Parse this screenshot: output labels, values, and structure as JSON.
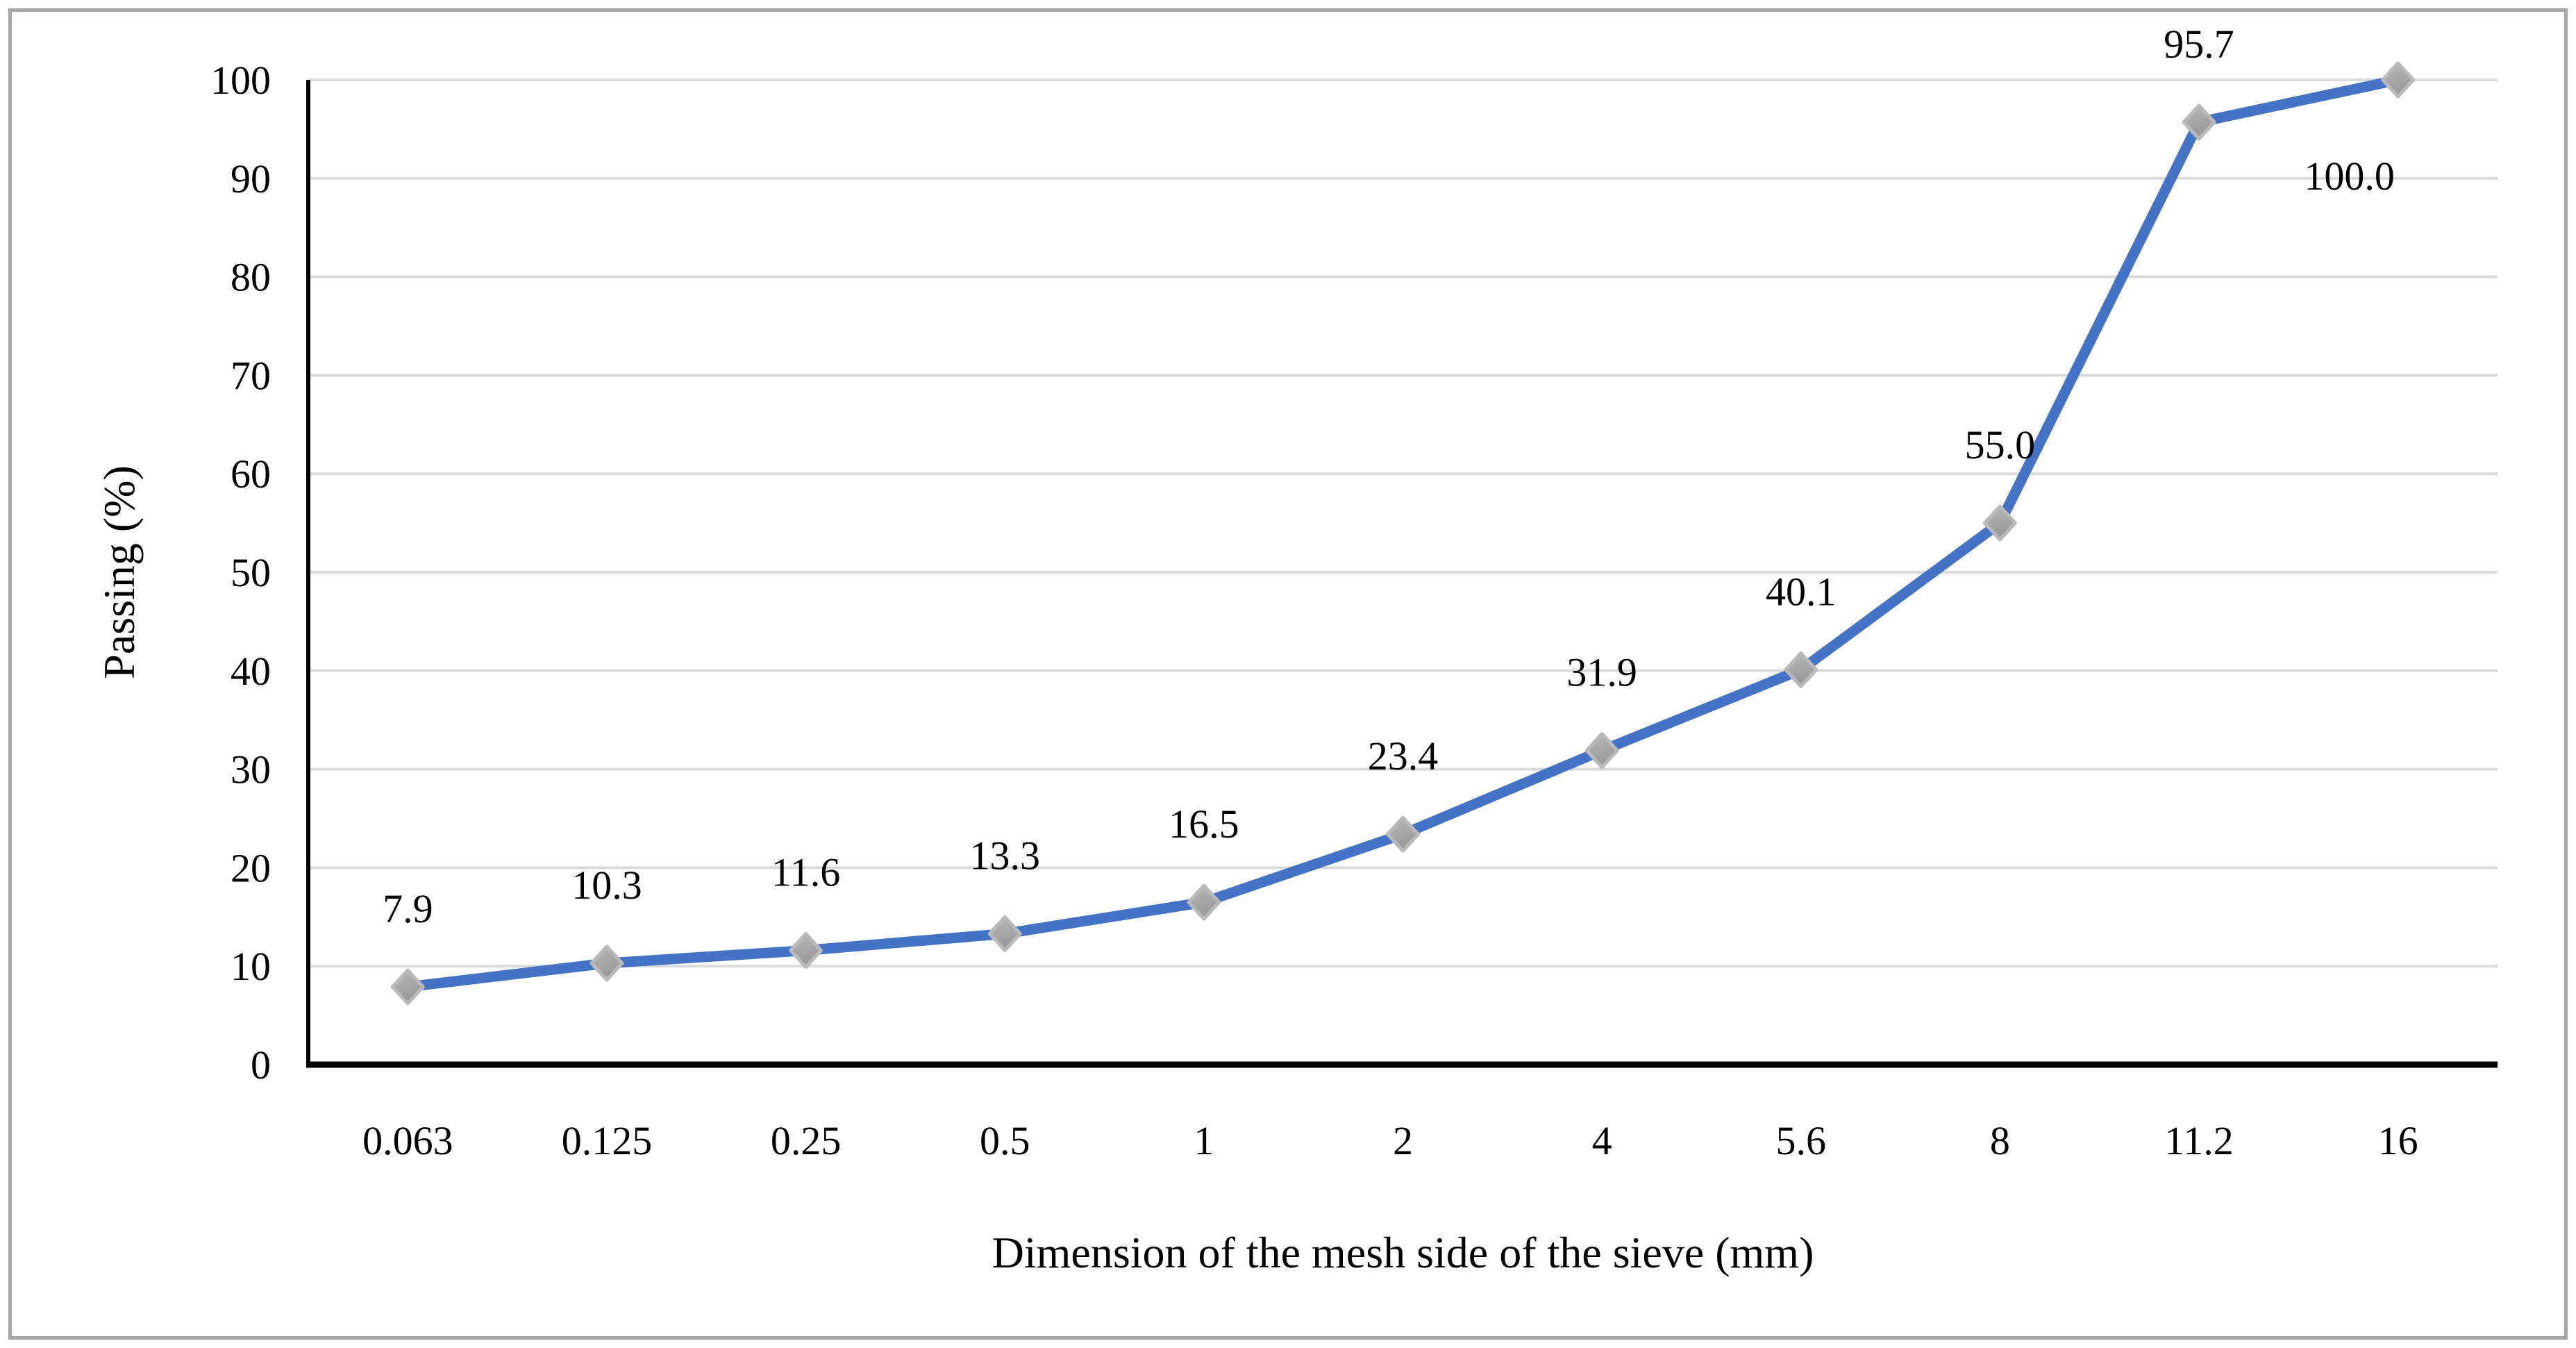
{
  "figure": {
    "border_color": "#a6a6a6",
    "background_color": "#ffffff",
    "text_color": "#000000"
  },
  "chart_data": {
    "type": "line",
    "title": "",
    "categories": [
      "0.063",
      "0.125",
      "0.25",
      "0.5",
      "1",
      "2",
      "4",
      "5.6",
      "8",
      "11.2",
      "16"
    ],
    "series": [
      {
        "name": "Passing",
        "values": [
          7.9,
          10.3,
          11.6,
          13.3,
          16.5,
          23.4,
          31.9,
          40.1,
          55.0,
          95.7,
          100.0
        ],
        "data_labels": [
          "7.9",
          "10.3",
          "11.6",
          "13.3",
          "16.5",
          "23.4",
          "31.9",
          "40.1",
          "55.0",
          "95.7",
          "100.0"
        ],
        "data_label_positions": [
          "above",
          "above",
          "above",
          "above",
          "above",
          "above",
          "above",
          "above",
          "above",
          "above",
          "below-left"
        ],
        "line_color": "#4472c4",
        "marker_shape": "diamond",
        "marker_color_light": "#b9b9b9",
        "marker_color_dark": "#989898"
      }
    ],
    "xlabel": "Dimension of the mesh side of the sieve (mm)",
    "ylabel": "Passing (%)",
    "ylim": [
      0,
      100
    ],
    "y_ticks": [
      0,
      10,
      20,
      30,
      40,
      50,
      60,
      70,
      80,
      90,
      100
    ],
    "grid": "horizontal",
    "gridline_color": "#d9d9d9",
    "axis_color": "#000000",
    "data_label_color": "#000000",
    "tick_label_color": "#000000",
    "legend": "none"
  }
}
